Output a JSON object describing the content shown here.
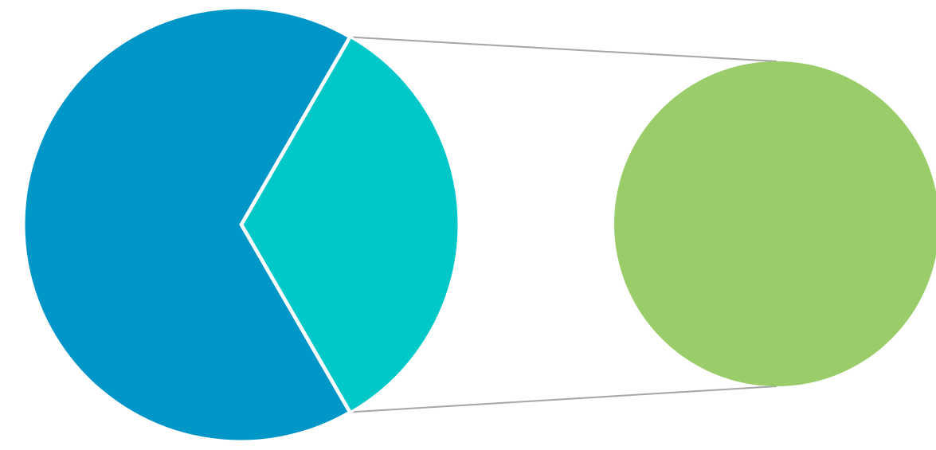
{
  "chart_data": {
    "type": "pie",
    "variant": "pie-of-pie",
    "title": "",
    "legend": "none",
    "main_pie": {
      "slices": [
        {
          "value": 66.7,
          "color": "#0096C8"
        },
        {
          "value": 33.3,
          "color": "#00C8C8"
        }
      ]
    },
    "secondary_pie": {
      "slices": [
        {
          "value": 100,
          "color": "#9ACD69"
        }
      ]
    },
    "connector_color": "#A6A6A6",
    "slice_border_color": "#FFFFFF"
  }
}
